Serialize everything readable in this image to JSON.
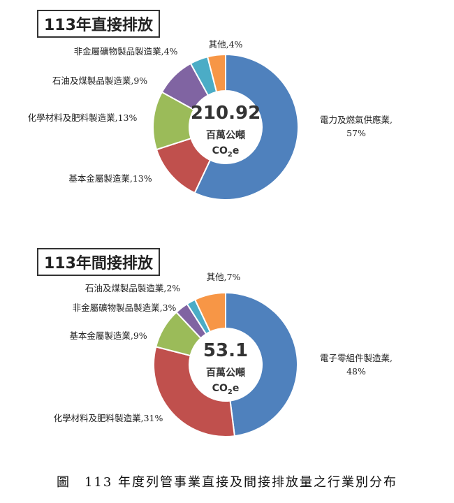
{
  "chart_data": [
    {
      "type": "pie",
      "title": "113年直接排放",
      "center_total": "210.92",
      "center_unit_line1": "百萬公噸",
      "center_unit_co2": "CO",
      "center_unit_sub": "2",
      "center_unit_e": "e",
      "slices": [
        {
          "label": "電力及燃氣供應業,",
          "label2": "57%",
          "value": 57,
          "color": "#4f81bd"
        },
        {
          "label": "基本金屬製造業,",
          "label2": "13%",
          "value": 13,
          "color": "#c0504d"
        },
        {
          "label": "化學材料及肥料製造業,",
          "label2": "13%",
          "value": 13,
          "color": "#9bbb59"
        },
        {
          "label": "石油及煤製品製造業,",
          "label2": "9%",
          "value": 9,
          "color": "#8064a2"
        },
        {
          "label": "非金屬礦物製品製造業,",
          "label2": "4%",
          "value": 4,
          "color": "#4bacc6"
        },
        {
          "label": "其他,",
          "label2": "4%",
          "value": 4,
          "color": "#f79646"
        }
      ]
    },
    {
      "type": "pie",
      "title": "113年間接排放",
      "center_total": "53.1",
      "center_unit_line1": "百萬公噸",
      "center_unit_co2": "CO",
      "center_unit_sub": "2",
      "center_unit_e": "e",
      "slices": [
        {
          "label": "電子零組件製造業,",
          "label2": "48%",
          "value": 48,
          "color": "#4f81bd"
        },
        {
          "label": "化學材料及肥料製造業,",
          "label2": "31%",
          "value": 31,
          "color": "#c0504d"
        },
        {
          "label": "基本金屬製造業,",
          "label2": "9%",
          "value": 9,
          "color": "#9bbb59"
        },
        {
          "label": "非金屬礦物製品製造業,",
          "label2": "3%",
          "value": 3,
          "color": "#8064a2"
        },
        {
          "label": "石油及煤製品製造業,",
          "label2": "2%",
          "value": 2,
          "color": "#4bacc6"
        },
        {
          "label": "其他,",
          "label2": "7%",
          "value": 7,
          "color": "#f79646"
        }
      ]
    }
  ],
  "figure_caption": "圖　113 年度列管事業直接及間接排放量之行業別分布"
}
